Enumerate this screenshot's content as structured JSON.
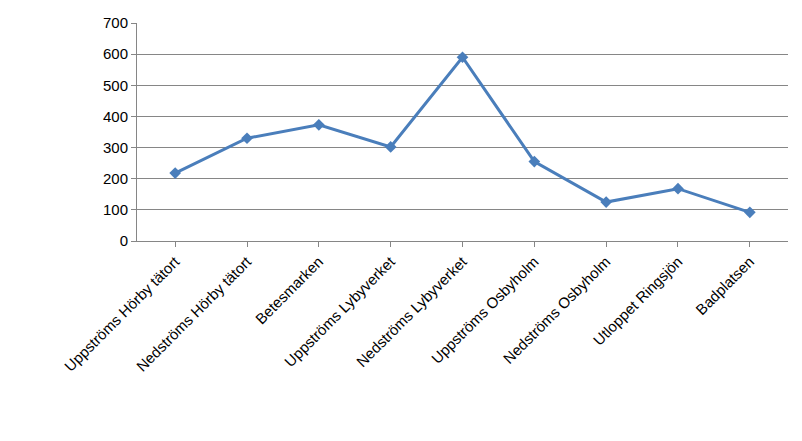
{
  "chart_data": {
    "type": "line",
    "categories": [
      "Uppströms Hörby tätort",
      "Nedströms Hörby tätort",
      "Betesmarken",
      "Uppströms Lybyverket",
      "Nedströms Lybyverket",
      "Uppströms Osbyholm",
      "Nedströms Osbyholm",
      "Utloppet Ringsjön",
      "Badplatsen"
    ],
    "values": [
      218,
      330,
      373,
      302,
      590,
      255,
      125,
      168,
      92
    ],
    "color": "#4a7ebb",
    "marker": "diamond",
    "line_style": "solid",
    "ylim": [
      0,
      700
    ],
    "yticks": [
      0,
      100,
      200,
      300,
      400,
      500,
      600,
      700
    ],
    "grid": true
  }
}
